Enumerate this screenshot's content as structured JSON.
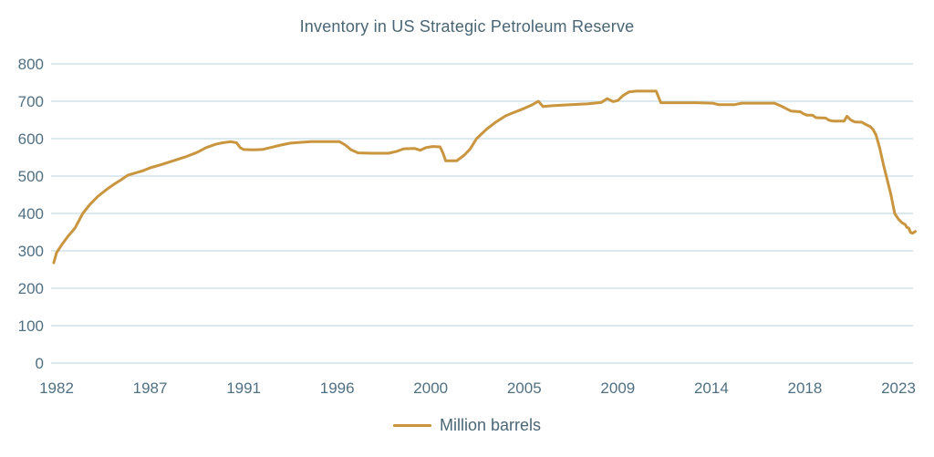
{
  "title": "Inventory in US Strategic Petroleum Reserve",
  "colors": {
    "line": "#c9953f",
    "text_title": "#4a6675",
    "text_axis": "#507082",
    "gridline": "#dceaf0",
    "background": "#ffffff"
  },
  "legend": {
    "items": [
      {
        "label": "Million barrels",
        "color": "#c9953f"
      }
    ]
  },
  "chart_data": {
    "type": "line",
    "title": "Inventory in US Strategic Petroleum Reserve",
    "xlabel": "",
    "ylabel": "",
    "ylim": [
      0,
      800
    ],
    "y_ticks": [
      0,
      100,
      200,
      300,
      400,
      500,
      600,
      700,
      800
    ],
    "x_tick_labels": [
      1982,
      1987,
      1991,
      1996,
      2000,
      2005,
      2009,
      2014,
      2018,
      2023
    ],
    "grid": "horizontal",
    "legend_position": "bottom-center",
    "series": [
      {
        "name": "Million barrels",
        "color": "#c9953f",
        "points": [
          [
            1981.85,
            268
          ],
          [
            1982.0,
            295
          ],
          [
            1982.3,
            318
          ],
          [
            1982.6,
            338
          ],
          [
            1983.0,
            362
          ],
          [
            1983.4,
            400
          ],
          [
            1983.8,
            425
          ],
          [
            1984.2,
            445
          ],
          [
            1984.7,
            465
          ],
          [
            1985.1,
            479
          ],
          [
            1985.45,
            490
          ],
          [
            1985.8,
            502
          ],
          [
            1986.2,
            508
          ],
          [
            1986.6,
            514
          ],
          [
            1987.0,
            522
          ],
          [
            1987.5,
            531
          ],
          [
            1988.0,
            541
          ],
          [
            1988.5,
            551
          ],
          [
            1989.0,
            563
          ],
          [
            1989.4,
            576
          ],
          [
            1989.8,
            585
          ],
          [
            1990.1,
            589
          ],
          [
            1990.45,
            592
          ],
          [
            1990.7,
            589
          ],
          [
            1990.85,
            576
          ],
          [
            1991.0,
            571
          ],
          [
            1991.5,
            570
          ],
          [
            1992.0,
            571
          ],
          [
            1992.5,
            577
          ],
          [
            1993.0,
            583
          ],
          [
            1993.5,
            588
          ],
          [
            1994.0,
            590
          ],
          [
            1994.6,
            592
          ],
          [
            1995.5,
            592
          ],
          [
            1996.1,
            592
          ],
          [
            1996.35,
            583
          ],
          [
            1996.6,
            570
          ],
          [
            1996.9,
            562
          ],
          [
            1997.5,
            561
          ],
          [
            1998.2,
            561
          ],
          [
            1998.55,
            566
          ],
          [
            1998.85,
            573
          ],
          [
            1999.3,
            574
          ],
          [
            1999.55,
            569
          ],
          [
            1999.8,
            576
          ],
          [
            2000.1,
            579
          ],
          [
            2000.5,
            578
          ],
          [
            2000.65,
            562
          ],
          [
            2000.8,
            541
          ],
          [
            2001.4,
            541
          ],
          [
            2001.8,
            556
          ],
          [
            2002.1,
            572
          ],
          [
            2002.45,
            600
          ],
          [
            2003.0,
            626
          ],
          [
            2003.5,
            645
          ],
          [
            2004.0,
            661
          ],
          [
            2004.5,
            671
          ],
          [
            2005.0,
            681
          ],
          [
            2005.35,
            691
          ],
          [
            2005.6,
            700
          ],
          [
            2005.8,
            686
          ],
          [
            2006.2,
            688
          ],
          [
            2007.0,
            691
          ],
          [
            2007.7,
            693
          ],
          [
            2008.3,
            697
          ],
          [
            2008.55,
            707
          ],
          [
            2008.8,
            699
          ],
          [
            2009.0,
            702
          ],
          [
            2009.3,
            716
          ],
          [
            2009.6,
            725
          ],
          [
            2010.0,
            727
          ],
          [
            2011.05,
            727
          ],
          [
            2011.3,
            696
          ],
          [
            2012.2,
            696
          ],
          [
            2013.2,
            696
          ],
          [
            2014.05,
            695
          ],
          [
            2014.3,
            691
          ],
          [
            2015.0,
            691
          ],
          [
            2015.3,
            695
          ],
          [
            2016.7,
            695
          ],
          [
            2016.95,
            688
          ],
          [
            2017.15,
            682
          ],
          [
            2017.4,
            674
          ],
          [
            2017.8,
            672
          ],
          [
            2017.95,
            666
          ],
          [
            2018.1,
            663
          ],
          [
            2018.4,
            663
          ],
          [
            2018.6,
            656
          ],
          [
            2019.1,
            655
          ],
          [
            2019.3,
            649
          ],
          [
            2019.5,
            647
          ],
          [
            2020.1,
            647
          ],
          [
            2020.25,
            660
          ],
          [
            2020.45,
            650
          ],
          [
            2020.65,
            645
          ],
          [
            2021.05,
            644
          ],
          [
            2021.25,
            638
          ],
          [
            2021.5,
            632
          ],
          [
            2021.65,
            624
          ],
          [
            2021.8,
            610
          ],
          [
            2022.0,
            575
          ],
          [
            2022.2,
            530
          ],
          [
            2022.35,
            500
          ],
          [
            2022.6,
            450
          ],
          [
            2022.8,
            400
          ],
          [
            2023.0,
            385
          ],
          [
            2023.2,
            375
          ],
          [
            2023.35,
            371
          ],
          [
            2023.45,
            363
          ],
          [
            2023.55,
            361
          ],
          [
            2023.65,
            349
          ],
          [
            2023.75,
            347
          ],
          [
            2023.9,
            352
          ]
        ]
      }
    ]
  }
}
